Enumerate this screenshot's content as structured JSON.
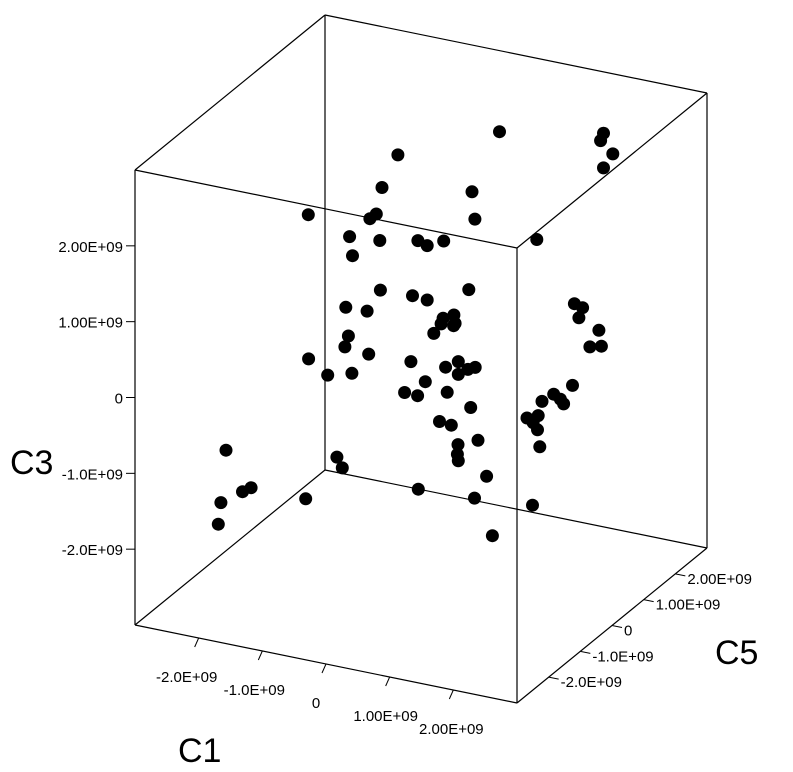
{
  "chart_data": {
    "type": "scatter",
    "x_axis_label": "C1",
    "y_axis_label": "C5",
    "z_axis_label": "C3",
    "x_ticks": [
      "-2.0E+09",
      "-1.0E+09",
      "0",
      "1.00E+09",
      "2.00E+09"
    ],
    "y_ticks": [
      "-2.0E+09",
      "-1.0E+09",
      "0",
      "1.00E+09",
      "2.00E+09"
    ],
    "z_ticks": [
      "-2.0E+09",
      "-1.0E+09",
      "0",
      "1.00E+09",
      "2.00E+09"
    ],
    "grid": false,
    "box": true,
    "colors": {
      "points": "#000000",
      "box": "#000000",
      "background": "#ffffff"
    },
    "points": [
      {
        "x": -1.84,
        "y": -2.46,
        "z": -0.68
      },
      {
        "x": -1.46,
        "y": -2.43,
        "z": -1.12
      },
      {
        "x": -1.6,
        "y": -2.42,
        "z": -1.2
      },
      {
        "x": -1.95,
        "y": -2.4,
        "z": -1.41
      },
      {
        "x": -2.0,
        "y": -2.38,
        "z": -1.71
      },
      {
        "x": -0.77,
        "y": -2.0,
        "z": 0.55
      },
      {
        "x": -0.48,
        "y": -1.98,
        "z": 0.38
      },
      {
        "x": -0.8,
        "y": -1.95,
        "z": 2.43
      },
      {
        "x": -1.0,
        "y": -1.63,
        "z": -1.46
      },
      {
        "x": -0.48,
        "y": -1.69,
        "z": -0.8
      },
      {
        "x": -0.42,
        "y": -1.64,
        "z": -0.95
      },
      {
        "x": -0.32,
        "y": -1.65,
        "z": 0.81
      },
      {
        "x": -0.24,
        "y": -1.7,
        "z": 0.35
      },
      {
        "x": -0.43,
        "y": -1.54,
        "z": 0.61
      },
      {
        "x": -0.41,
        "y": -1.55,
        "z": 1.14
      },
      {
        "x": -0.47,
        "y": -1.31,
        "z": 1.98
      },
      {
        "x": -0.42,
        "y": -1.32,
        "z": 1.74
      },
      {
        "x": -0.2,
        "y": -1.3,
        "z": 1.04
      },
      {
        "x": -0.23,
        "y": -1.19,
        "z": 0.43
      },
      {
        "x": -0.1,
        "y": -1.08,
        "z": 1.26
      },
      {
        "x": -0.28,
        "y": -1.05,
        "z": 2.16
      },
      {
        "x": -0.19,
        "y": -1.03,
        "z": 2.23
      },
      {
        "x": -0.13,
        "y": -0.97,
        "z": 2.57
      },
      {
        "x": -0.17,
        "y": -0.96,
        "z": 1.86
      },
      {
        "x": 0.07,
        "y": -0.87,
        "z": 3.0
      },
      {
        "x": 0.5,
        "y": -1.09,
        "z": -1.26
      },
      {
        "x": 0.17,
        "y": -0.86,
        "z": -0.12
      },
      {
        "x": 0.25,
        "y": -0.77,
        "z": 1.14
      },
      {
        "x": 0.24,
        "y": -0.8,
        "z": 0.28
      },
      {
        "x": 0.36,
        "y": -0.83,
        "z": -0.14
      },
      {
        "x": 0.45,
        "y": -0.77,
        "z": 0.04
      },
      {
        "x": 0.5,
        "y": -0.81,
        "z": 1.14
      },
      {
        "x": 0.31,
        "y": -0.72,
        "z": 1.86
      },
      {
        "x": 0.41,
        "y": -0.63,
        "z": 1.78
      },
      {
        "x": 0.48,
        "y": -0.56,
        "z": 0.61
      },
      {
        "x": 0.6,
        "y": -0.57,
        "z": 0.76
      },
      {
        "x": 0.63,
        "y": -0.57,
        "z": 0.84
      },
      {
        "x": 0.64,
        "y": -0.57,
        "z": 1.86
      },
      {
        "x": 0.68,
        "y": -0.59,
        "z": 0.21
      },
      {
        "x": 0.69,
        "y": -0.56,
        "z": -0.13
      },
      {
        "x": 0.76,
        "y": -0.5,
        "z": 0.74
      },
      {
        "x": 0.78,
        "y": -0.49,
        "z": 0.77
      },
      {
        "x": 0.74,
        "y": -0.45,
        "z": 0.86
      },
      {
        "x": 0.8,
        "y": -0.43,
        "z": 0.25
      },
      {
        "x": 0.8,
        "y": -0.43,
        "z": 0.08
      },
      {
        "x": 0.9,
        "y": -0.33,
        "z": 0.13
      },
      {
        "x": 0.91,
        "y": -0.32,
        "z": 1.18
      },
      {
        "x": 0.95,
        "y": -0.3,
        "z": 2.47
      },
      {
        "x": 1.01,
        "y": -0.33,
        "z": 2.13
      },
      {
        "x": 1.02,
        "y": -0.34,
        "z": 0.18
      },
      {
        "x": 0.53,
        "y": -0.48,
        "z": -0.57
      },
      {
        "x": 0.7,
        "y": -0.45,
        "z": -0.6
      },
      {
        "x": 0.78,
        "y": -0.42,
        "z": -0.98
      },
      {
        "x": 0.79,
        "y": -0.42,
        "z": -0.85
      },
      {
        "x": 0.81,
        "y": -0.45,
        "z": -1.05
      },
      {
        "x": 1.04,
        "y": -0.4,
        "z": -1.52
      },
      {
        "x": 1.07,
        "y": -0.35,
        "z": -0.77
      },
      {
        "x": 0.94,
        "y": -0.32,
        "z": -0.37
      },
      {
        "x": 1.23,
        "y": -0.4,
        "z": -1.2
      },
      {
        "x": 1.34,
        "y": -0.44,
        "z": -1.95
      },
      {
        "x": 1.6,
        "y": 0.44,
        "z": 1.7
      },
      {
        "x": 0.99,
        "y": 0.49,
        "z": 3.0
      },
      {
        "x": 1.9,
        "y": -0.3,
        "z": -1.5
      },
      {
        "x": 1.75,
        "y": -0.17,
        "z": -0.42
      },
      {
        "x": 1.85,
        "y": -0.18,
        "z": -0.46
      },
      {
        "x": 1.98,
        "y": -0.23,
        "z": -0.74
      },
      {
        "x": 1.9,
        "y": -0.14,
        "z": -0.56
      },
      {
        "x": 1.9,
        "y": -0.12,
        "z": -0.38
      },
      {
        "x": 1.88,
        "y": 0.04,
        "z": -0.25
      },
      {
        "x": 2.07,
        "y": 0.03,
        "z": -0.12
      },
      {
        "x": 2.16,
        "y": 0.06,
        "z": -0.18
      },
      {
        "x": 2.12,
        "y": 0.24,
        "z": -0.31
      },
      {
        "x": 2.31,
        "y": 0.14,
        "z": 0.0
      },
      {
        "x": 2.4,
        "y": 0.16,
        "z": 0.9
      },
      {
        "x": 2.35,
        "y": 0.38,
        "z": 0.95
      },
      {
        "x": 2.22,
        "y": 0.38,
        "z": 0.98
      },
      {
        "x": 2.38,
        "y": 0.55,
        "z": 0.38
      },
      {
        "x": 2.32,
        "y": 1.1,
        "z": 3.0
      },
      {
        "x": 2.45,
        "y": 1.13,
        "z": 2.74
      },
      {
        "x": 2.14,
        "y": 1.46,
        "z": 2.39
      },
      {
        "x": 2.07,
        "y": 1.51,
        "z": 2.72
      },
      {
        "x": 2.54,
        "y": 0.51,
        "z": 0.64
      },
      {
        "x": 2.63,
        "y": 0.41,
        "z": 0.48
      }
    ]
  }
}
